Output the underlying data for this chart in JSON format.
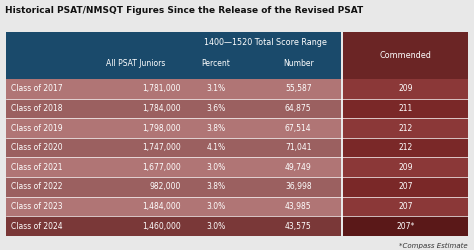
{
  "title": "Historical PSAT/NMSQT Figures Since the Release of the Revised PSAT",
  "subheader": "1400—1520 Total Score Range",
  "rows": [
    [
      "Class of 2017",
      "1,781,000",
      "3.1%",
      "55,587",
      "209"
    ],
    [
      "Class of 2018",
      "1,784,000",
      "3.6%",
      "64,875",
      "211"
    ],
    [
      "Class of 2019",
      "1,798,000",
      "3.8%",
      "67,514",
      "212"
    ],
    [
      "Class of 2020",
      "1,747,000",
      "4.1%",
      "71,041",
      "212"
    ],
    [
      "Class of 2021",
      "1,677,000",
      "3.0%",
      "49,749",
      "209"
    ],
    [
      "Class of 2022",
      "982,000",
      "3.8%",
      "36,998",
      "207"
    ],
    [
      "Class of 2023",
      "1,484,000",
      "3.0%",
      "43,985",
      "207"
    ],
    [
      "Class of 2024",
      "1,460,000",
      "3.0%",
      "43,575",
      "207*"
    ]
  ],
  "footer": "*Compass Estimate",
  "header_bg": "#1a4a6b",
  "row_colors": [
    "#b07575",
    "#9b6060"
  ],
  "last_row_bg": "#7a3838",
  "commended_header_bg": "#6b2525",
  "commended_row_colors": [
    "#8b3838",
    "#7a2828"
  ],
  "commended_last_bg": "#5a1818",
  "header_text_color": "#ffffff",
  "row_text_color": "#ffffff",
  "title_color": "#111111",
  "footer_color": "#333333",
  "bg_color": "#e8e8e8"
}
